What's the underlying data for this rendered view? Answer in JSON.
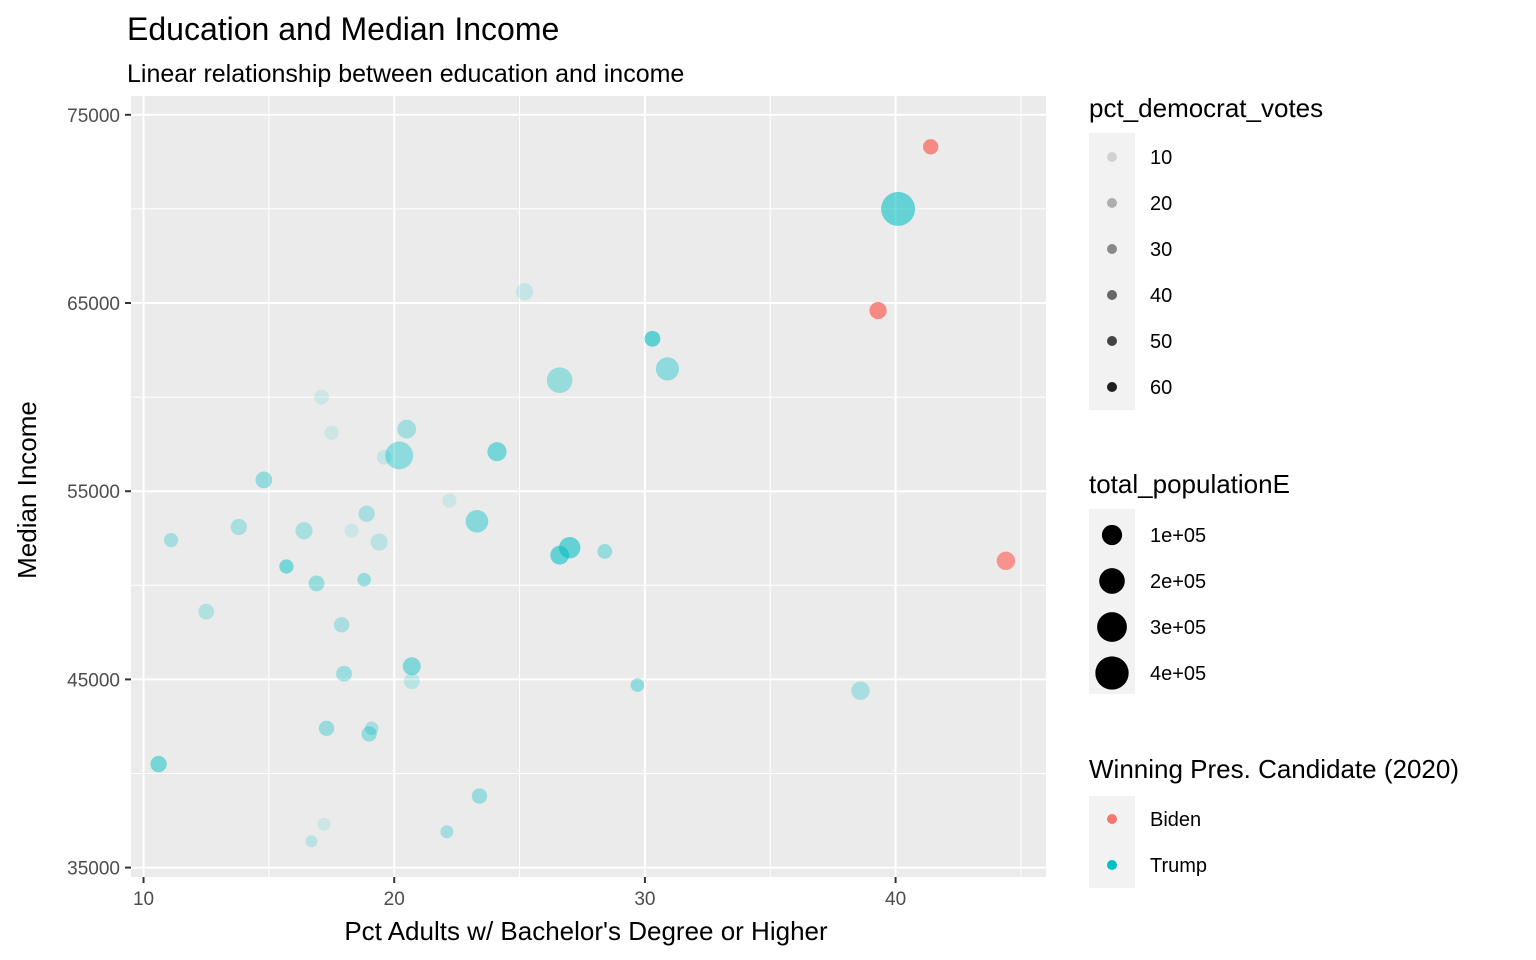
{
  "chart_data": {
    "type": "scatter",
    "title": "Education and Median Income",
    "subtitle": "Linear relationship between education and income",
    "xlabel": "Pct Adults w/ Bachelor's Degree or Higher",
    "ylabel": "Median Income",
    "xlim": [
      9.5,
      46
    ],
    "ylim": [
      34500,
      76000
    ],
    "x_ticks": [
      10,
      20,
      30,
      40
    ],
    "y_ticks": [
      35000,
      45000,
      55000,
      65000,
      75000
    ],
    "x_tick_labels": [
      "10",
      "20",
      "30",
      "40"
    ],
    "y_tick_labels": [
      "35000",
      "45000",
      "55000",
      "65000",
      "75000"
    ],
    "grid": true,
    "legend_position": "right",
    "colors": {
      "Biden": "#F8766D",
      "Trump": "#00BFC4",
      "panel": "#EBEBEB",
      "grid": "#FFFFFF",
      "legend_key": "#F2F2F2"
    },
    "legends": {
      "alpha": {
        "title": "pct_democrat_votes",
        "entries": [
          {
            "label": "10",
            "value": 10
          },
          {
            "label": "20",
            "value": 20
          },
          {
            "label": "30",
            "value": 30
          },
          {
            "label": "40",
            "value": 40
          },
          {
            "label": "50",
            "value": 50
          },
          {
            "label": "60",
            "value": 60
          }
        ]
      },
      "size": {
        "title": "total_populationE",
        "entries": [
          {
            "label": "1e+05",
            "value": 100000
          },
          {
            "label": "2e+05",
            "value": 200000
          },
          {
            "label": "3e+05",
            "value": 300000
          },
          {
            "label": "4e+05",
            "value": 400000
          }
        ]
      },
      "color": {
        "title": "Winning Pres. Candidate (2020)",
        "entries": [
          {
            "label": "Biden",
            "color": "#F8766D"
          },
          {
            "label": "Trump",
            "color": "#00BFC4"
          }
        ]
      }
    },
    "points": [
      {
        "x": 41.4,
        "y": 73300,
        "pop": 40000,
        "dem": 58,
        "winner": "Biden"
      },
      {
        "x": 40.1,
        "y": 70000,
        "pop": 420000,
        "dem": 40,
        "winner": "Trump"
      },
      {
        "x": 39.3,
        "y": 64600,
        "pop": 60000,
        "dem": 58,
        "winner": "Biden"
      },
      {
        "x": 44.4,
        "y": 51300,
        "pop": 75000,
        "dem": 52,
        "winner": "Biden"
      },
      {
        "x": 25.2,
        "y": 65600,
        "pop": 60000,
        "dem": 12,
        "winner": "Trump"
      },
      {
        "x": 30.3,
        "y": 63100,
        "pop": 45000,
        "dem": 42,
        "winner": "Trump"
      },
      {
        "x": 26.6,
        "y": 60900,
        "pop": 200000,
        "dem": 25,
        "winner": "Trump"
      },
      {
        "x": 30.9,
        "y": 61500,
        "pop": 150000,
        "dem": 28,
        "winner": "Trump"
      },
      {
        "x": 17.1,
        "y": 60000,
        "pop": 35000,
        "dem": 10,
        "winner": "Trump"
      },
      {
        "x": 17.5,
        "y": 58100,
        "pop": 30000,
        "dem": 10,
        "winner": "Trump"
      },
      {
        "x": 20.5,
        "y": 58300,
        "pop": 80000,
        "dem": 22,
        "winner": "Trump"
      },
      {
        "x": 24.1,
        "y": 57100,
        "pop": 85000,
        "dem": 35,
        "winner": "Trump"
      },
      {
        "x": 19.6,
        "y": 56800,
        "pop": 35000,
        "dem": 12,
        "winner": "Trump"
      },
      {
        "x": 20.2,
        "y": 56900,
        "pop": 250000,
        "dem": 28,
        "winner": "Trump"
      },
      {
        "x": 14.8,
        "y": 55600,
        "pop": 55000,
        "dem": 26,
        "winner": "Trump"
      },
      {
        "x": 22.2,
        "y": 54500,
        "pop": 30000,
        "dem": 10,
        "winner": "Trump"
      },
      {
        "x": 18.9,
        "y": 53800,
        "pop": 50000,
        "dem": 20,
        "winner": "Trump"
      },
      {
        "x": 23.3,
        "y": 53400,
        "pop": 140000,
        "dem": 30,
        "winner": "Trump"
      },
      {
        "x": 13.8,
        "y": 53100,
        "pop": 50000,
        "dem": 20,
        "winner": "Trump"
      },
      {
        "x": 16.4,
        "y": 52900,
        "pop": 60000,
        "dem": 20,
        "winner": "Trump"
      },
      {
        "x": 18.3,
        "y": 52900,
        "pop": 30000,
        "dem": 10,
        "winner": "Trump"
      },
      {
        "x": 11.1,
        "y": 52400,
        "pop": 30000,
        "dem": 22,
        "winner": "Trump"
      },
      {
        "x": 19.4,
        "y": 52300,
        "pop": 60000,
        "dem": 15,
        "winner": "Trump"
      },
      {
        "x": 27.0,
        "y": 52000,
        "pop": 120000,
        "dem": 40,
        "winner": "Trump"
      },
      {
        "x": 28.4,
        "y": 51800,
        "pop": 35000,
        "dem": 25,
        "winner": "Trump"
      },
      {
        "x": 26.6,
        "y": 51600,
        "pop": 80000,
        "dem": 40,
        "winner": "Trump"
      },
      {
        "x": 15.7,
        "y": 51000,
        "pop": 30000,
        "dem": 35,
        "winner": "Trump"
      },
      {
        "x": 18.8,
        "y": 50300,
        "pop": 25000,
        "dem": 25,
        "winner": "Trump"
      },
      {
        "x": 16.9,
        "y": 50100,
        "pop": 45000,
        "dem": 25,
        "winner": "Trump"
      },
      {
        "x": 12.5,
        "y": 48600,
        "pop": 45000,
        "dem": 18,
        "winner": "Trump"
      },
      {
        "x": 17.9,
        "y": 47900,
        "pop": 40000,
        "dem": 20,
        "winner": "Trump"
      },
      {
        "x": 20.7,
        "y": 45700,
        "pop": 70000,
        "dem": 32,
        "winner": "Trump"
      },
      {
        "x": 18.0,
        "y": 45300,
        "pop": 45000,
        "dem": 24,
        "winner": "Trump"
      },
      {
        "x": 20.7,
        "y": 44900,
        "pop": 45000,
        "dem": 15,
        "winner": "Trump"
      },
      {
        "x": 29.7,
        "y": 44700,
        "pop": 25000,
        "dem": 28,
        "winner": "Trump"
      },
      {
        "x": 38.6,
        "y": 44400,
        "pop": 75000,
        "dem": 20,
        "winner": "Trump"
      },
      {
        "x": 17.3,
        "y": 42400,
        "pop": 40000,
        "dem": 25,
        "winner": "Trump"
      },
      {
        "x": 19.1,
        "y": 42400,
        "pop": 25000,
        "dem": 20,
        "winner": "Trump"
      },
      {
        "x": 19.0,
        "y": 42100,
        "pop": 40000,
        "dem": 25,
        "winner": "Trump"
      },
      {
        "x": 10.6,
        "y": 40500,
        "pop": 50000,
        "dem": 35,
        "winner": "Trump"
      },
      {
        "x": 23.4,
        "y": 38800,
        "pop": 40000,
        "dem": 25,
        "winner": "Trump"
      },
      {
        "x": 17.2,
        "y": 37300,
        "pop": 20000,
        "dem": 10,
        "winner": "Trump"
      },
      {
        "x": 22.1,
        "y": 36900,
        "pop": 20000,
        "dem": 22,
        "winner": "Trump"
      },
      {
        "x": 16.7,
        "y": 36400,
        "pop": 15000,
        "dem": 15,
        "winner": "Trump"
      }
    ]
  }
}
